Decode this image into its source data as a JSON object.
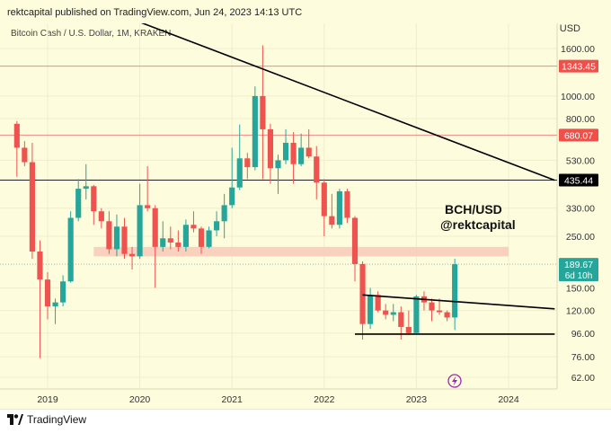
{
  "header": {
    "published_text": "rektcapital published on TradingView.com, Jun 24, 2023 14:13 UTC"
  },
  "footer": {
    "brand": "TradingView"
  },
  "chart_data": {
    "type": "candlestick",
    "title": "Bitcoin Cash / U.S. Dollar, 1M, KRAKEN",
    "currency_label": "USD",
    "watermark": "BCH/USD\n@rektcapital",
    "watermark_line1": "BCH/USD",
    "watermark_line2": "@rektcapital",
    "y_scale": "log",
    "y_ticks": [
      1600,
      1000,
      800,
      530,
      330,
      250,
      150,
      120,
      96,
      76,
      62
    ],
    "y_tick_labels": [
      "1600.00",
      "1000.00",
      "800.00",
      "530.00",
      "330.00",
      "250.00",
      "150.00",
      "120.00",
      "96.00",
      "76.00",
      "62.00"
    ],
    "x_ticks": [
      "2019",
      "2020",
      "2021",
      "2022",
      "2023",
      "2024"
    ],
    "price_labels": [
      {
        "value": 1343.45,
        "label": "1343.45",
        "color": "#f0504a"
      },
      {
        "value": 680.07,
        "label": "680.07",
        "color": "#f0504a"
      },
      {
        "value": 435.44,
        "label": "435.44",
        "color": "#000000"
      }
    ],
    "current_price": {
      "value": 189.67,
      "label": "189.67",
      "sub": "6d 10h",
      "color": "#26a69a"
    },
    "horizontal_lines": [
      {
        "value": 1343.45,
        "color": "#f08a84"
      },
      {
        "value": 680.07,
        "color": "#f08a84"
      },
      {
        "value": 435.44,
        "color": "#222222"
      }
    ],
    "zone": {
      "low": 205,
      "high": 225,
      "start": "2019-07",
      "end": "2024-01",
      "color": "#f8c9b8"
    },
    "trendlines": [
      {
        "points": [
          [
            "2018-09",
            3300
          ],
          [
            "2024-07",
            435
          ]
        ]
      },
      {
        "points": [
          [
            "2022-06",
            140
          ],
          [
            "2024-07",
            122
          ]
        ]
      },
      {
        "points": [
          [
            "2022-05",
            95
          ],
          [
            "2024-07",
            95
          ]
        ]
      }
    ],
    "candles": [
      [
        "2018-09",
        760,
        780,
        450,
        600
      ],
      [
        "2018-10",
        600,
        640,
        500,
        520
      ],
      [
        "2018-11",
        520,
        630,
        200,
        215
      ],
      [
        "2018-12",
        215,
        240,
        75,
        163
      ],
      [
        "2019-01",
        163,
        175,
        110,
        125
      ],
      [
        "2019-02",
        125,
        135,
        105,
        130
      ],
      [
        "2019-03",
        130,
        170,
        125,
        160
      ],
      [
        "2019-04",
        160,
        320,
        158,
        300
      ],
      [
        "2019-05",
        300,
        440,
        290,
        400
      ],
      [
        "2019-06",
        400,
        510,
        360,
        410
      ],
      [
        "2019-07",
        410,
        415,
        280,
        320
      ],
      [
        "2019-08",
        320,
        330,
        270,
        290
      ],
      [
        "2019-09",
        290,
        320,
        210,
        220
      ],
      [
        "2019-10",
        220,
        310,
        205,
        275
      ],
      [
        "2019-11",
        275,
        300,
        200,
        210
      ],
      [
        "2019-12",
        210,
        225,
        180,
        205
      ],
      [
        "2020-01",
        205,
        420,
        200,
        340
      ],
      [
        "2020-02",
        340,
        500,
        320,
        330
      ],
      [
        "2020-03",
        330,
        340,
        150,
        225
      ],
      [
        "2020-04",
        225,
        290,
        215,
        245
      ],
      [
        "2020-05",
        245,
        275,
        220,
        235
      ],
      [
        "2020-06",
        235,
        265,
        215,
        225
      ],
      [
        "2020-07",
        225,
        295,
        215,
        280
      ],
      [
        "2020-08",
        280,
        320,
        260,
        270
      ],
      [
        "2020-09",
        270,
        275,
        210,
        225
      ],
      [
        "2020-10",
        225,
        275,
        222,
        265
      ],
      [
        "2020-11",
        265,
        320,
        250,
        290
      ],
      [
        "2020-12",
        290,
        380,
        245,
        340
      ],
      [
        "2021-01",
        340,
        600,
        330,
        405
      ],
      [
        "2021-02",
        405,
        755,
        395,
        540
      ],
      [
        "2021-03",
        540,
        570,
        440,
        495
      ],
      [
        "2021-04",
        495,
        1100,
        480,
        1000
      ],
      [
        "2021-05",
        1000,
        1650,
        440,
        720
      ],
      [
        "2021-06",
        720,
        760,
        420,
        490
      ],
      [
        "2021-07",
        490,
        560,
        380,
        530
      ],
      [
        "2021-08",
        530,
        720,
        510,
        630
      ],
      [
        "2021-09",
        630,
        700,
        420,
        510
      ],
      [
        "2021-10",
        510,
        690,
        500,
        600
      ],
      [
        "2021-11",
        600,
        720,
        540,
        550
      ],
      [
        "2021-12",
        550,
        610,
        360,
        425
      ],
      [
        "2022-01",
        425,
        440,
        250,
        305
      ],
      [
        "2022-02",
        305,
        380,
        270,
        280
      ],
      [
        "2022-03",
        280,
        400,
        270,
        390
      ],
      [
        "2022-04",
        390,
        400,
        285,
        300
      ],
      [
        "2022-05",
        300,
        305,
        160,
        190
      ],
      [
        "2022-06",
        190,
        195,
        90,
        105
      ],
      [
        "2022-07",
        105,
        150,
        100,
        140
      ],
      [
        "2022-08",
        140,
        145,
        118,
        120
      ],
      [
        "2022-09",
        120,
        128,
        110,
        115
      ],
      [
        "2022-10",
        115,
        128,
        108,
        118
      ],
      [
        "2022-11",
        118,
        125,
        90,
        102
      ],
      [
        "2022-12",
        102,
        120,
        95,
        96
      ],
      [
        "2023-01",
        96,
        140,
        95,
        138
      ],
      [
        "2023-02",
        138,
        145,
        120,
        130
      ],
      [
        "2023-03",
        130,
        135,
        108,
        120
      ],
      [
        "2023-04",
        120,
        135,
        115,
        118
      ],
      [
        "2023-05",
        118,
        120,
        108,
        112
      ],
      [
        "2023-06",
        112,
        200,
        99,
        189.67
      ]
    ]
  }
}
